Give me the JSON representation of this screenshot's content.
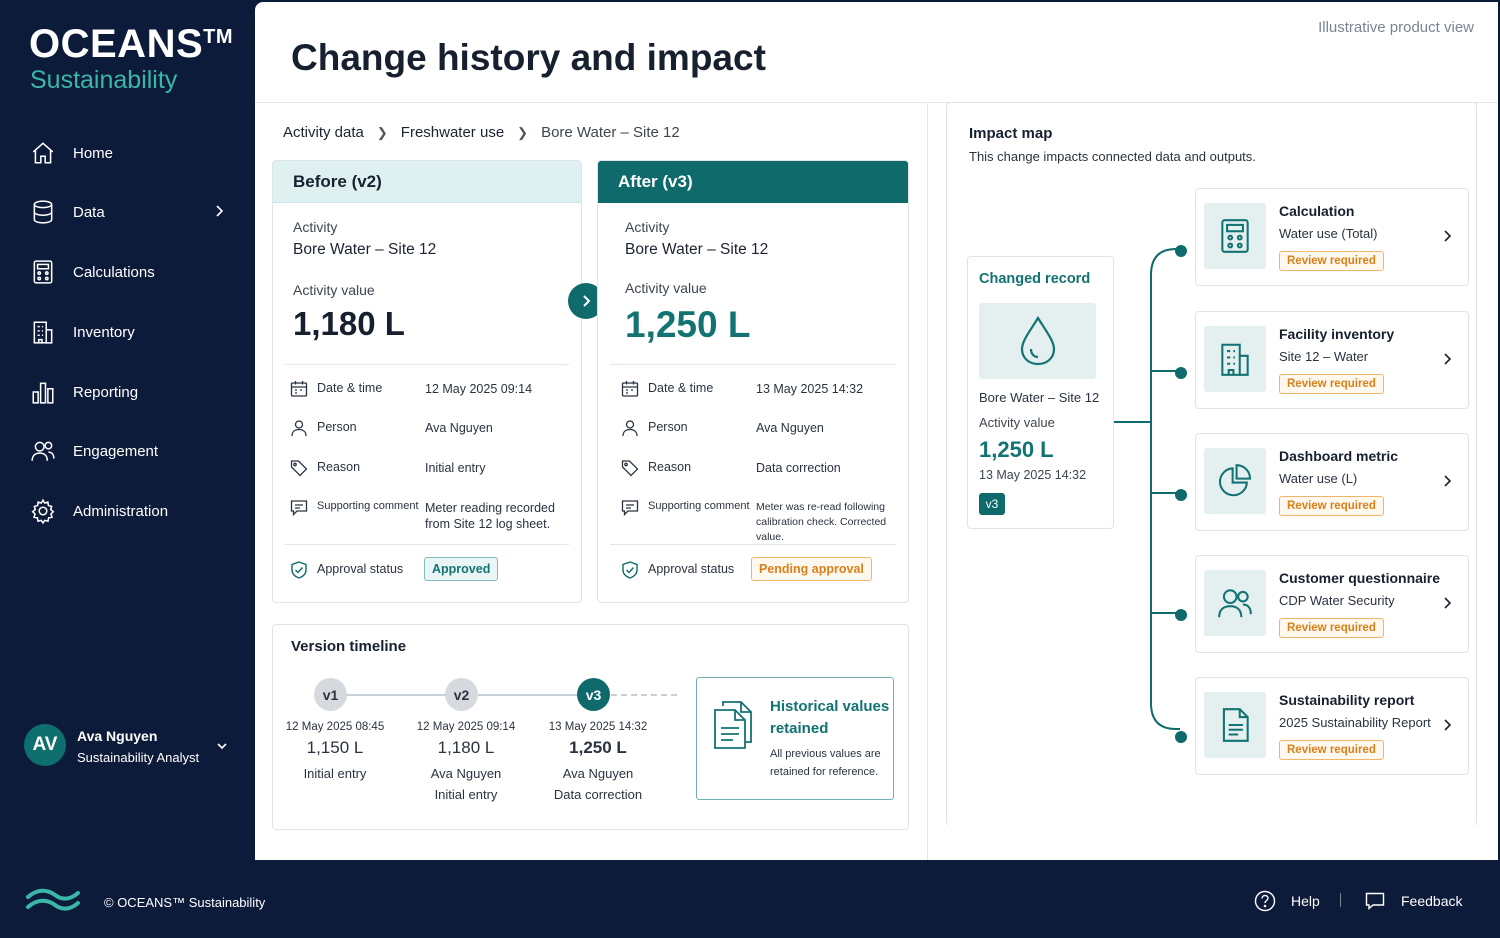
{
  "brand": {
    "name": "OCEANS",
    "tm": "TM",
    "sub": "Sustainability"
  },
  "nav": {
    "home": "Home",
    "data": "Data",
    "calculations": "Calculations",
    "inventory": "Inventory",
    "reporting": "Reporting",
    "engagement": "Engagement",
    "administration": "Administration"
  },
  "user": {
    "initials": "AV",
    "name": "Ava Nguyen",
    "role": "Sustainability Analyst"
  },
  "header": {
    "title": "Change history and impact",
    "note": "Illustrative product view"
  },
  "breadcrumb": [
    "Activity data",
    "Freshwater use",
    "Bore Water – Site 12"
  ],
  "labels": {
    "activity": "Activity",
    "activity_value": "Activity value",
    "date_time": "Date & time",
    "person": "Person",
    "reason": "Reason",
    "supporting_comment": "Supporting comment",
    "approval_status": "Approval status"
  },
  "before": {
    "title": "Before (v2)",
    "activity": "Bore Water – Site 12",
    "value": "1,180 L",
    "date": "12 May 2025 09:14",
    "person": "Ava Nguyen",
    "reason": "Initial entry",
    "comment": "Meter reading recorded from Site 12 log sheet.",
    "status": "Approved"
  },
  "after": {
    "title": "After (v3)",
    "activity": "Bore Water – Site 12",
    "value": "1,250 L",
    "date": "13 May 2025 14:32",
    "person": "Ava Nguyen",
    "reason": "Data correction",
    "comment": "Meter was re-read following calibration check. Corrected value.",
    "status": "Pending approval"
  },
  "timeline": {
    "title": "Version timeline",
    "versions": [
      {
        "label": "v1",
        "date": "12 May 2025 08:45",
        "value": "1,150 L",
        "person": "",
        "reason": "Initial entry"
      },
      {
        "label": "v2",
        "date": "12 May 2025 09:14",
        "value": "1,180 L",
        "person": "Ava Nguyen",
        "reason": "Initial entry"
      },
      {
        "label": "v3",
        "date": "13 May 2025 14:32",
        "value": "1,250 L",
        "person": "Ava Nguyen",
        "reason": "Data correction"
      }
    ],
    "historical_title": "Historical values retained",
    "historical_text": "All previous values are retained for reference."
  },
  "impact": {
    "title": "Impact map",
    "subtitle": "This change impacts connected data and outputs.",
    "changed": {
      "title": "Changed record",
      "record": "Bore Water – Site 12",
      "label": "Activity value",
      "value": "1,250 L",
      "date": "13 May 2025 14:32",
      "version": "v3"
    },
    "items": [
      {
        "icon": "calculator-icon",
        "title": "Calculation",
        "sub": "Water use (Total)",
        "badge": "Review required"
      },
      {
        "icon": "building-icon",
        "title": "Facility inventory",
        "sub": "Site 12 – Water",
        "badge": "Review required"
      },
      {
        "icon": "pie-chart-icon",
        "title": "Dashboard metric",
        "sub": "Water use (L)",
        "badge": "Review required"
      },
      {
        "icon": "users-icon",
        "title": "Customer questionnaire",
        "sub": "CDP Water Security",
        "badge": "Review required"
      },
      {
        "icon": "document-icon",
        "title": "Sustainability report",
        "sub": "2025 Sustainability Report",
        "badge": "Review required"
      }
    ]
  },
  "footer": {
    "copyright": "© OCEANS™ Sustainability",
    "help": "Help",
    "feedback": "Feedback"
  },
  "colors": {
    "navy": "#0d1b3a",
    "teal": "#0f6b6b",
    "accent": "#3bb7a9",
    "amber": "#d9801a"
  }
}
